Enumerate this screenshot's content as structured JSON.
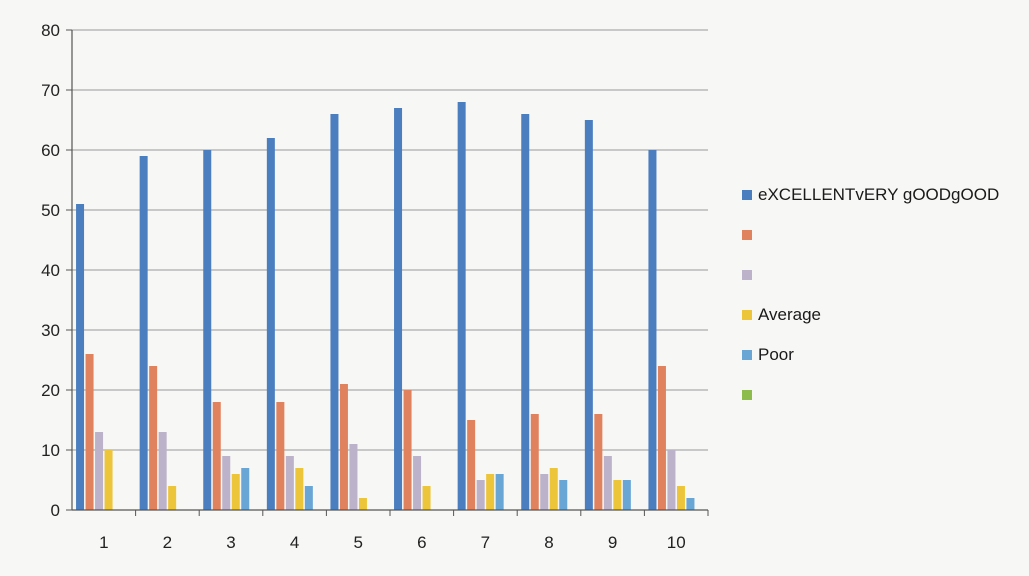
{
  "chart_data": {
    "type": "bar",
    "categories": [
      "1",
      "2",
      "3",
      "4",
      "5",
      "6",
      "7",
      "8",
      "9",
      "10"
    ],
    "ylim": [
      0,
      80
    ],
    "yticks": [
      0,
      10,
      20,
      30,
      40,
      50,
      60,
      70,
      80
    ],
    "grid": true,
    "legend_position": "right",
    "series": [
      {
        "name": "eXCELLENTvERY gOODgOOD",
        "color": "#4a7ebf",
        "values": [
          51,
          59,
          60,
          62,
          66,
          67,
          68,
          66,
          65,
          60
        ]
      },
      {
        "name": "",
        "color": "#e0825e",
        "values": [
          26,
          24,
          18,
          18,
          21,
          20,
          15,
          16,
          16,
          24
        ]
      },
      {
        "name": "",
        "color": "#bcb2c9",
        "values": [
          13,
          13,
          9,
          9,
          11,
          9,
          5,
          6,
          9,
          10
        ]
      },
      {
        "name": "Average",
        "color": "#ecc53a",
        "values": [
          10,
          4,
          6,
          7,
          2,
          4,
          6,
          7,
          5,
          4
        ]
      },
      {
        "name": "Poor",
        "color": "#69a6d6",
        "values": [
          0,
          0,
          7,
          4,
          0,
          0,
          6,
          5,
          5,
          2
        ]
      },
      {
        "name": "",
        "color": "#8dbb4c",
        "values": [
          0,
          0,
          0,
          0,
          0,
          0,
          0,
          0,
          0,
          0
        ]
      }
    ]
  }
}
